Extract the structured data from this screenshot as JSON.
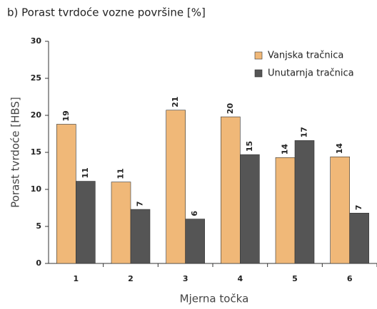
{
  "chart_data": {
    "type": "bar",
    "title": "b) Porast tvrdoće vozne površine [%]",
    "y_label": "Porast tvrdoće [HBS]",
    "x_label": "Mjerna točka",
    "categories": [
      "1",
      "2",
      "3",
      "4",
      "5",
      "6"
    ],
    "series": [
      {
        "name": "Vanjska tračnica",
        "color": "#f0b878",
        "values": [
          18.8,
          11.0,
          20.7,
          19.8,
          14.3,
          14.4
        ],
        "value_labels": [
          "19",
          "11",
          "21",
          "20",
          "14",
          "14"
        ]
      },
      {
        "name": "Unutarnja tračnica",
        "color": "#555555",
        "values": [
          11.1,
          7.3,
          6.0,
          14.7,
          16.6,
          6.8
        ],
        "value_labels": [
          "11",
          "7",
          "6",
          "15",
          "17",
          "7"
        ]
      }
    ],
    "ylim": [
      0,
      30
    ],
    "yticks": [
      0,
      5,
      10,
      15,
      20,
      25,
      30
    ],
    "legend": "upper right",
    "grid": false
  }
}
